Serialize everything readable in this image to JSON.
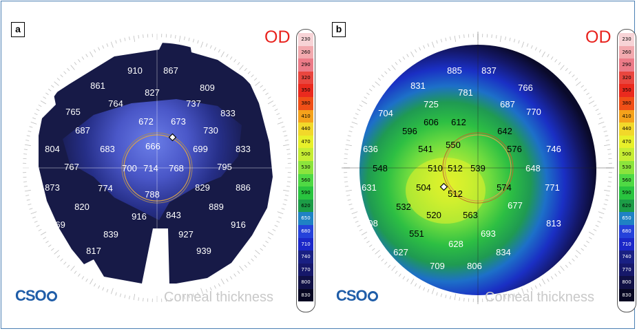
{
  "panels": [
    {
      "letter": "a",
      "eye": "OD",
      "logo": "CSO",
      "watermark": "Corneal thickness",
      "values": [
        "910",
        "867",
        "861",
        "827",
        "809",
        "764",
        "737",
        "765",
        "833",
        "672",
        "673",
        "687",
        "730",
        "666",
        "804",
        "683",
        "699",
        "833",
        "767",
        "700",
        "714",
        "768",
        "795",
        "873",
        "774",
        "886",
        "788",
        "829",
        "820",
        "889",
        "916",
        "843",
        "869",
        "916",
        "839",
        "927",
        "939",
        "817"
      ]
    },
    {
      "letter": "b",
      "eye": "OD",
      "logo": "CSO",
      "watermark": "Corneal thickness",
      "values": [
        "885",
        "837",
        "831",
        "781",
        "766",
        "725",
        "687",
        "704",
        "770",
        "606",
        "612",
        "596",
        "642",
        "550",
        "636",
        "541",
        "576",
        "746",
        "548",
        "510",
        "512",
        "539",
        "648",
        "631",
        "504",
        "574",
        "771",
        "512",
        "532",
        "677",
        "520",
        "563",
        "608",
        "813",
        "551",
        "693",
        "628",
        "627",
        "834",
        "709",
        "806"
      ]
    }
  ],
  "scale": {
    "values": [
      "230",
      "260",
      "290",
      "320",
      "350",
      "380",
      "410",
      "440",
      "470",
      "500",
      "530",
      "560",
      "590",
      "620",
      "650",
      "680",
      "710",
      "740",
      "770",
      "800",
      "830"
    ],
    "colors": [
      "#f7d3d6",
      "#f2a9ae",
      "#ec7b88",
      "#e9463f",
      "#ea2a1e",
      "#f04f17",
      "#f5a21b",
      "#f2d82a",
      "#e8f02a",
      "#c6ed33",
      "#8ce43c",
      "#4fd944",
      "#29c43f",
      "#1c9d47",
      "#1f82c4",
      "#2542da",
      "#1b27c8",
      "#192083",
      "#16186a",
      "#101045",
      "#070722"
    ]
  },
  "colors": {
    "od_red": "#e8221d",
    "cso_blue": "#1f5da8",
    "frame_border": "#4a7fb3"
  }
}
